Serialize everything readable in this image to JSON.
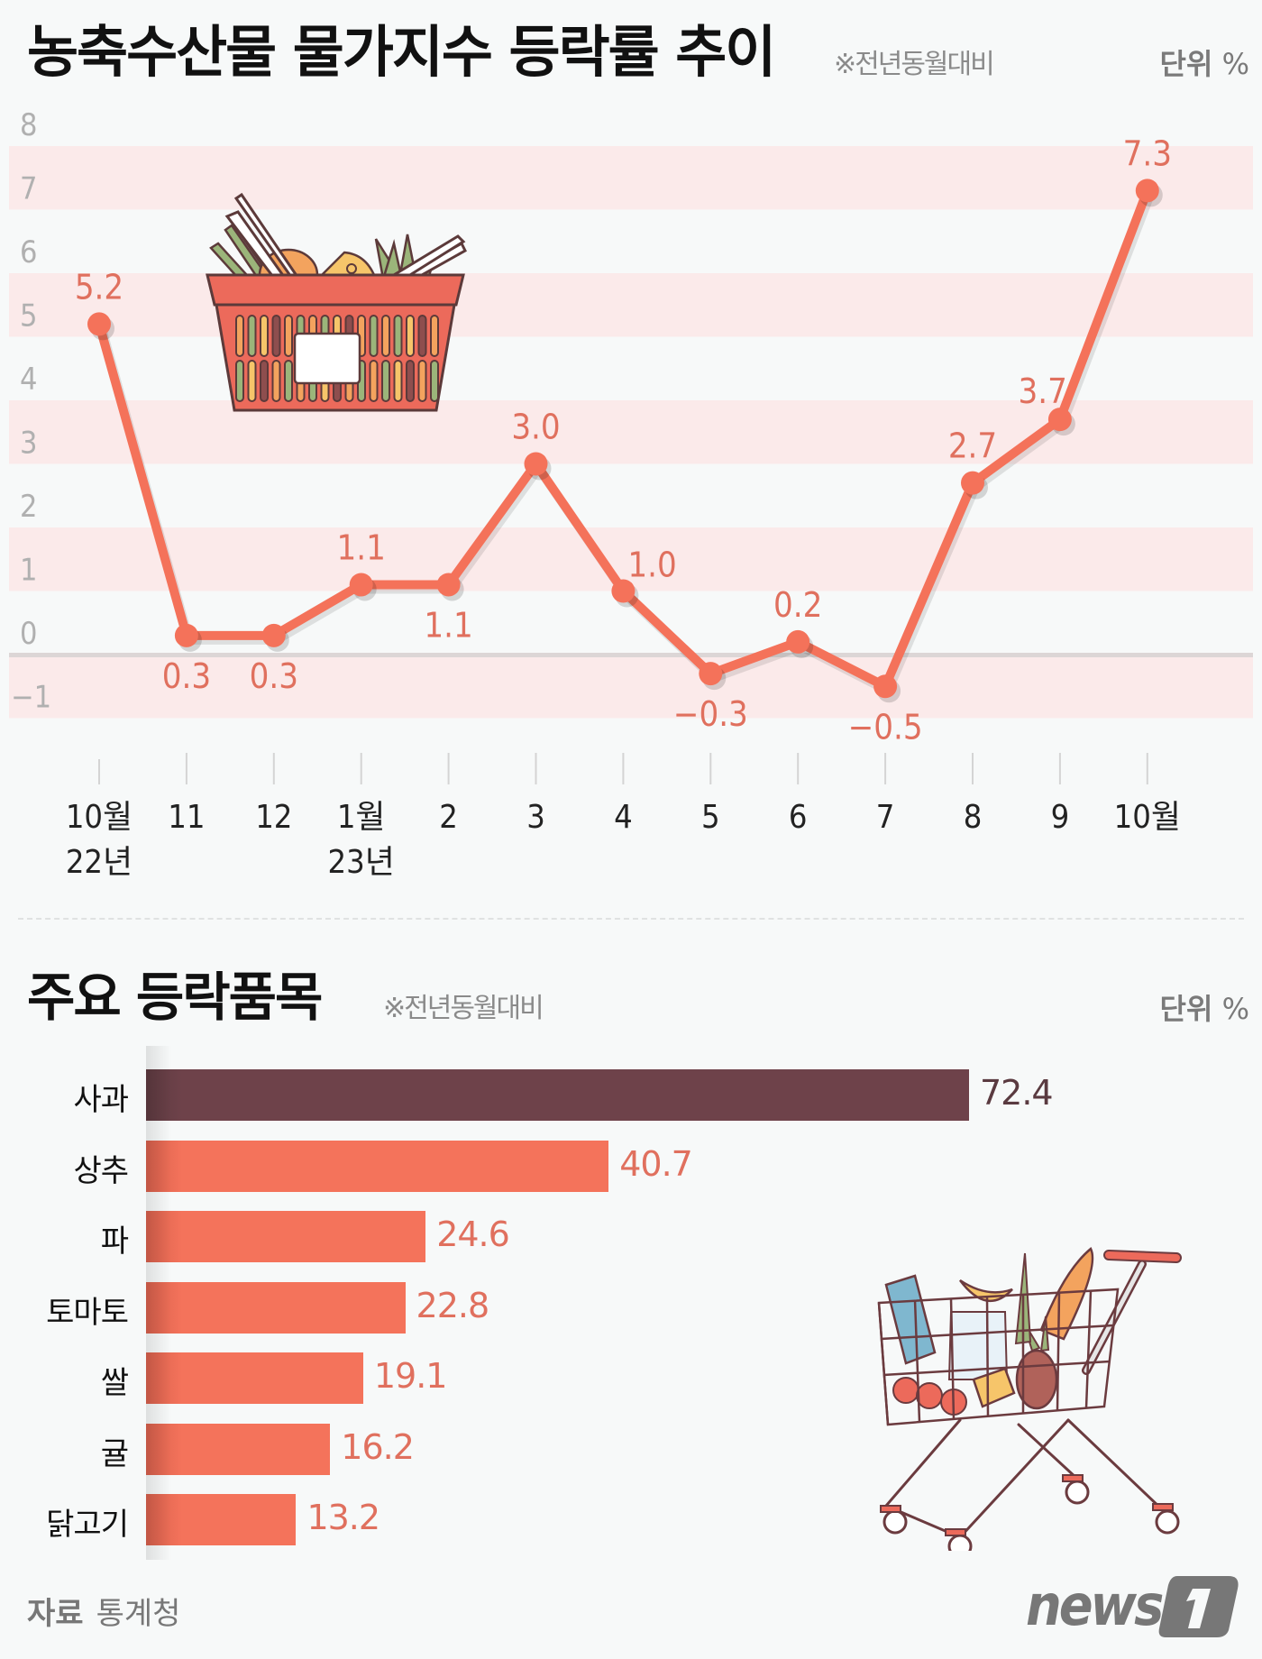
{
  "header": {
    "title": "농축수산물 물가지수 등락률 추이",
    "note": "※전년동월대비",
    "unit_label": "단위",
    "unit_symbol": "%"
  },
  "section2": {
    "title": "주요 등락품목",
    "note": "※전년동월대비",
    "unit_label": "단위",
    "unit_symbol": "%"
  },
  "footer": {
    "source_label": "자료",
    "source_value": "통계청",
    "logo_text": "news1"
  },
  "colors": {
    "line": "#f4725a",
    "value_text": "#e0705e",
    "band": "#fbeaea",
    "zero_line": "#dcd6d6",
    "axis_text": "#b0b0b0",
    "bar": "#f4735b",
    "bar_highlight": "#6e424a",
    "highlight_text": "#5a3a40",
    "background": "#f7f9f9"
  },
  "chart_data": [
    {
      "type": "line",
      "title": "농축수산물 물가지수 등락률 추이",
      "subtitle": "※전년동월대비",
      "unit": "%",
      "xlabel": "",
      "ylabel": "",
      "ylim": [
        -1,
        8
      ],
      "yticks": [
        8,
        7,
        6,
        5,
        4,
        3,
        2,
        1,
        0,
        -1
      ],
      "grid": "alternating horizontal bands",
      "categories": [
        "10월 22년",
        "11",
        "12",
        "1월 23년",
        "2",
        "3",
        "4",
        "5",
        "6",
        "7",
        "8",
        "9",
        "10월"
      ],
      "x_labels": [
        {
          "line1": "10월",
          "line2": "22년"
        },
        {
          "line1": "11",
          "line2": ""
        },
        {
          "line1": "12",
          "line2": ""
        },
        {
          "line1": "1월",
          "line2": "23년"
        },
        {
          "line1": "2",
          "line2": ""
        },
        {
          "line1": "3",
          "line2": ""
        },
        {
          "line1": "4",
          "line2": ""
        },
        {
          "line1": "5",
          "line2": ""
        },
        {
          "line1": "6",
          "line2": ""
        },
        {
          "line1": "7",
          "line2": ""
        },
        {
          "line1": "8",
          "line2": ""
        },
        {
          "line1": "9",
          "line2": ""
        },
        {
          "line1": "10월",
          "line2": ""
        }
      ],
      "values": [
        5.2,
        0.3,
        0.3,
        1.1,
        1.1,
        3.0,
        1.0,
        -0.3,
        0.2,
        -0.5,
        2.7,
        3.7,
        7.3
      ],
      "value_labels": [
        "5.2",
        "0.3",
        "0.3",
        "1.1",
        "1.1",
        "3.0",
        "1.0",
        "-0.3",
        "0.2",
        "-0.5",
        "2.7",
        "3.7",
        "7.3"
      ],
      "label_positions": [
        "above",
        "below",
        "below",
        "above",
        "below",
        "above",
        "above-right",
        "below",
        "above",
        "below",
        "above",
        "above-left",
        "above"
      ]
    },
    {
      "type": "bar",
      "orientation": "horizontal",
      "title": "주요 등락품목",
      "subtitle": "※전년동월대비",
      "unit": "%",
      "categories": [
        "사과",
        "상추",
        "파",
        "토마토",
        "쌀",
        "귤",
        "닭고기"
      ],
      "values": [
        72.4,
        40.7,
        24.6,
        22.8,
        19.1,
        16.2,
        13.2
      ],
      "value_labels": [
        "72.4",
        "40.7",
        "24.6",
        "22.8",
        "19.1",
        "16.2",
        "13.2"
      ],
      "highlight_index": 0
    }
  ]
}
